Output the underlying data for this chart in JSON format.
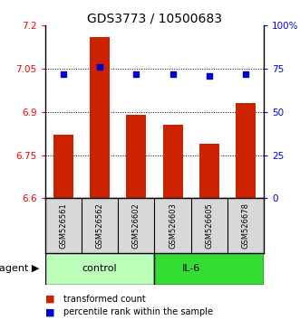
{
  "title": "GDS3773 / 10500683",
  "samples": [
    "GSM526561",
    "GSM526562",
    "GSM526602",
    "GSM526603",
    "GSM526605",
    "GSM526678"
  ],
  "bar_values": [
    6.82,
    7.16,
    6.89,
    6.855,
    6.79,
    6.93
  ],
  "dot_values": [
    72,
    76,
    72,
    72,
    71,
    72
  ],
  "ylim_left": [
    6.6,
    7.2
  ],
  "ylim_right": [
    0,
    100
  ],
  "yticks_left": [
    6.6,
    6.75,
    6.9,
    7.05,
    7.2
  ],
  "yticks_right": [
    0,
    25,
    50,
    75,
    100
  ],
  "ytick_labels_left": [
    "6.6",
    "6.75",
    "6.9",
    "7.05",
    "7.2"
  ],
  "ytick_labels_right": [
    "0",
    "25",
    "50",
    "75",
    "100%"
  ],
  "hlines": [
    6.75,
    6.9,
    7.05
  ],
  "bar_color": "#cc2200",
  "dot_color": "#0000cc",
  "n_control": 3,
  "n_il6": 3,
  "control_color": "#bbffbb",
  "il6_color": "#33dd33",
  "sample_box_color": "#d8d8d8",
  "agent_label": "agent",
  "control_label": "control",
  "il6_label": "IL-6",
  "legend_bar_label": "transformed count",
  "legend_dot_label": "percentile rank within the sample",
  "title_fontsize": 10,
  "tick_label_fontsize": 7.5,
  "legend_fontsize": 7,
  "sample_fontsize": 6
}
